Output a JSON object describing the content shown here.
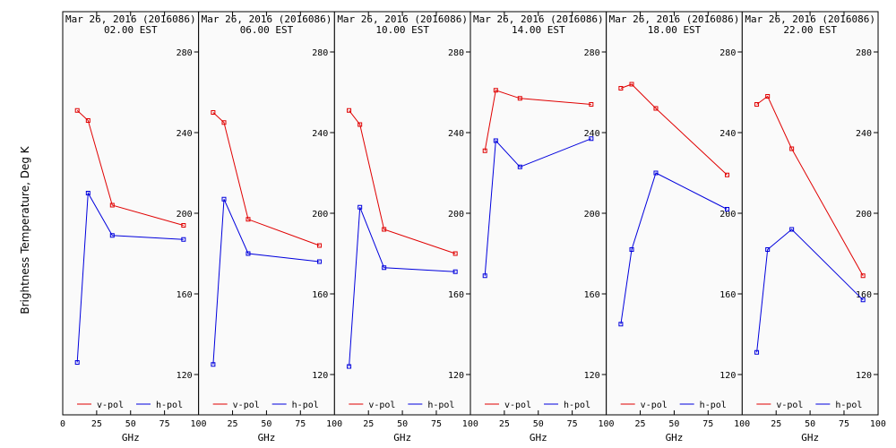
{
  "colors": {
    "v_pol": "#e00000",
    "h_pol": "#0000dd",
    "panel_bg": "#fafafa",
    "axis": "#000000"
  },
  "chart_data": {
    "type": "line",
    "ylabel": "Brightness Temperature, Deg K",
    "xlabel": "GHz",
    "xlim": [
      0,
      100
    ],
    "ylim": [
      100,
      295
    ],
    "xticks": [
      0,
      25,
      50,
      75,
      100
    ],
    "yticks": [
      120,
      160,
      200,
      240,
      280
    ],
    "grid": false,
    "legend_position": "bottom",
    "panels": [
      {
        "date": "Mar 26, 2016 (2016086)",
        "time": "02.00 EST",
        "series": [
          {
            "name": "v-pol",
            "x": [
              10.7,
              18.7,
              36.5,
              89.0
            ],
            "y": [
              251,
              246,
              204,
              194
            ]
          },
          {
            "name": "h-pol",
            "x": [
              10.7,
              18.7,
              36.5,
              89.0
            ],
            "y": [
              126,
              210,
              189,
              187
            ]
          }
        ]
      },
      {
        "date": "Mar 26, 2016 (2016086)",
        "time": "06.00 EST",
        "series": [
          {
            "name": "v-pol",
            "x": [
              10.7,
              18.7,
              36.5,
              89.0
            ],
            "y": [
              250,
              245,
              197,
              184
            ]
          },
          {
            "name": "h-pol",
            "x": [
              10.7,
              18.7,
              36.5,
              89.0
            ],
            "y": [
              125,
              207,
              180,
              176
            ]
          }
        ]
      },
      {
        "date": "Mar 26, 2016 (2016086)",
        "time": "10.00 EST",
        "series": [
          {
            "name": "v-pol",
            "x": [
              10.7,
              18.7,
              36.5,
              89.0
            ],
            "y": [
              251,
              244,
              192,
              180
            ]
          },
          {
            "name": "h-pol",
            "x": [
              10.7,
              18.7,
              36.5,
              89.0
            ],
            "y": [
              124,
              203,
              173,
              171
            ]
          }
        ]
      },
      {
        "date": "Mar 26, 2016 (2016086)",
        "time": "14.00 EST",
        "series": [
          {
            "name": "v-pol",
            "x": [
              10.7,
              18.7,
              36.5,
              89.0
            ],
            "y": [
              231,
              261,
              257,
              254
            ]
          },
          {
            "name": "h-pol",
            "x": [
              10.7,
              18.7,
              36.5,
              89.0
            ],
            "y": [
              169,
              236,
              223,
              237
            ]
          }
        ]
      },
      {
        "date": "Mar 26, 2016 (2016086)",
        "time": "18.00 EST",
        "series": [
          {
            "name": "v-pol",
            "x": [
              10.7,
              18.7,
              36.5,
              89.0
            ],
            "y": [
              262,
              264,
              252,
              219
            ]
          },
          {
            "name": "h-pol",
            "x": [
              10.7,
              18.7,
              36.5,
              89.0
            ],
            "y": [
              145,
              182,
              220,
              202
            ]
          }
        ]
      },
      {
        "date": "Mar 26, 2016 (2016086)",
        "time": "22.00 EST",
        "series": [
          {
            "name": "v-pol",
            "x": [
              10.7,
              18.7,
              36.5,
              89.0
            ],
            "y": [
              254,
              258,
              232,
              169
            ]
          },
          {
            "name": "h-pol",
            "x": [
              10.7,
              18.7,
              36.5,
              89.0
            ],
            "y": [
              131,
              182,
              192,
              157
            ]
          }
        ]
      }
    ]
  }
}
